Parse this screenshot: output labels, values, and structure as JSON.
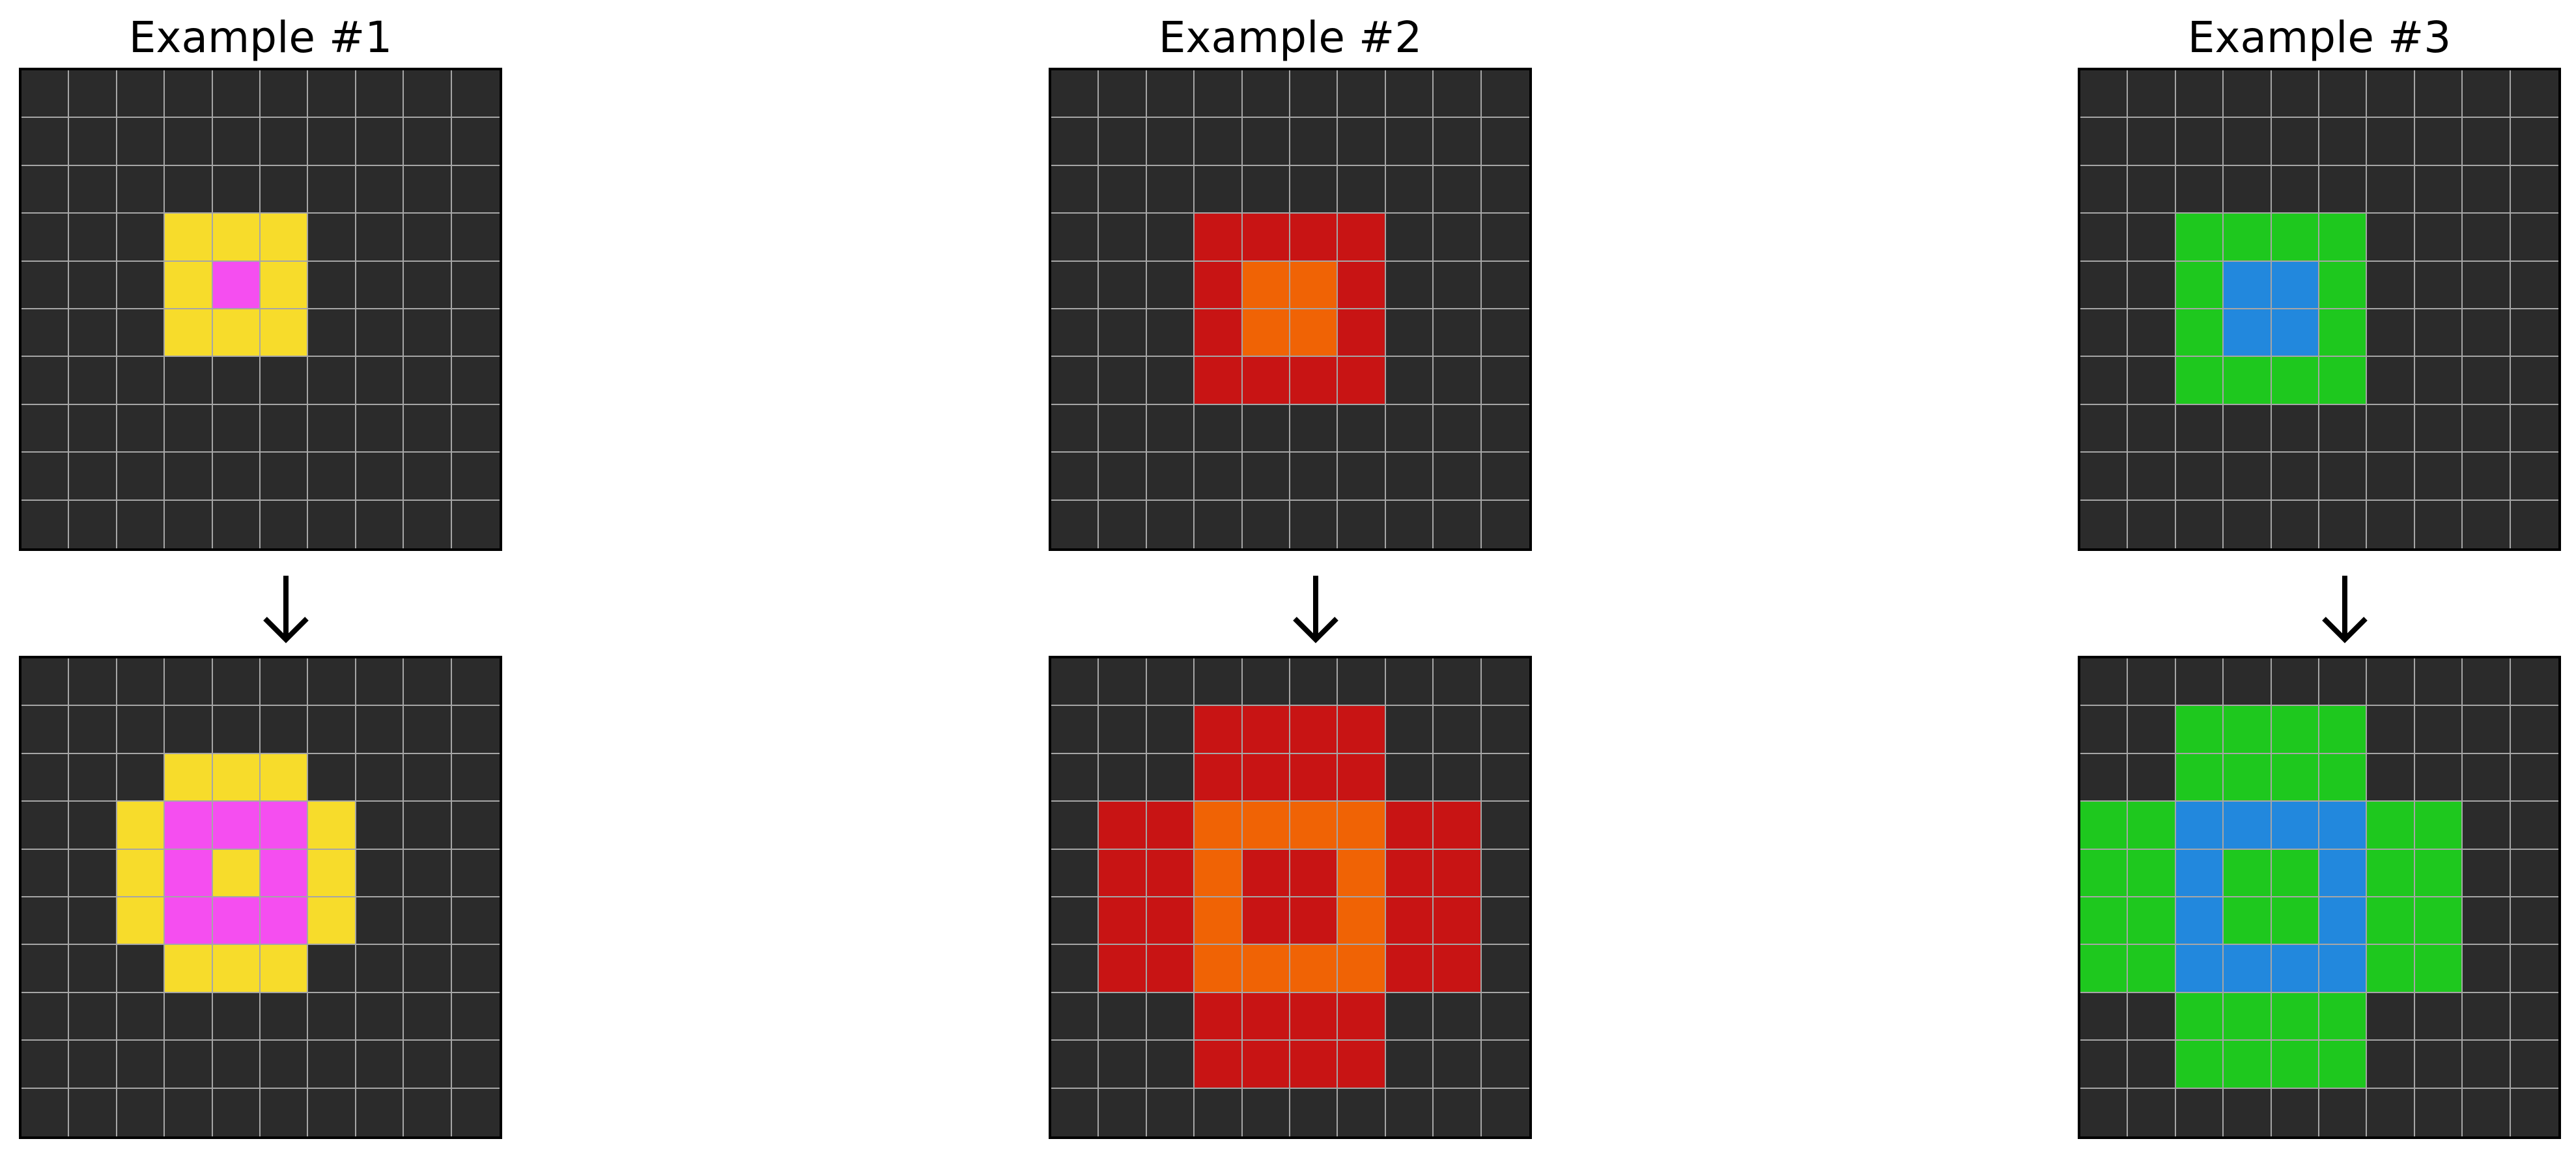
{
  "colors": {
    "0": "#2b2b2b",
    "2": "#c81414",
    "3": "#1ec81e",
    "4": "#f7dc2b",
    "6": "#f54ef0",
    "7": "#f06305",
    "8": "#2288dd"
  },
  "examples": [
    {
      "title": "Example #1",
      "input": [
        [
          0,
          0,
          0,
          0,
          0,
          0,
          0,
          0,
          0,
          0
        ],
        [
          0,
          0,
          0,
          0,
          0,
          0,
          0,
          0,
          0,
          0
        ],
        [
          0,
          0,
          0,
          0,
          0,
          0,
          0,
          0,
          0,
          0
        ],
        [
          0,
          0,
          0,
          4,
          4,
          4,
          0,
          0,
          0,
          0
        ],
        [
          0,
          0,
          0,
          4,
          6,
          4,
          0,
          0,
          0,
          0
        ],
        [
          0,
          0,
          0,
          4,
          4,
          4,
          0,
          0,
          0,
          0
        ],
        [
          0,
          0,
          0,
          0,
          0,
          0,
          0,
          0,
          0,
          0
        ],
        [
          0,
          0,
          0,
          0,
          0,
          0,
          0,
          0,
          0,
          0
        ],
        [
          0,
          0,
          0,
          0,
          0,
          0,
          0,
          0,
          0,
          0
        ],
        [
          0,
          0,
          0,
          0,
          0,
          0,
          0,
          0,
          0,
          0
        ]
      ],
      "output": [
        [
          0,
          0,
          0,
          0,
          0,
          0,
          0,
          0,
          0,
          0
        ],
        [
          0,
          0,
          0,
          0,
          0,
          0,
          0,
          0,
          0,
          0
        ],
        [
          0,
          0,
          0,
          4,
          4,
          4,
          0,
          0,
          0,
          0
        ],
        [
          0,
          0,
          4,
          6,
          6,
          6,
          4,
          0,
          0,
          0
        ],
        [
          0,
          0,
          4,
          6,
          4,
          6,
          4,
          0,
          0,
          0
        ],
        [
          0,
          0,
          4,
          6,
          6,
          6,
          4,
          0,
          0,
          0
        ],
        [
          0,
          0,
          0,
          4,
          4,
          4,
          0,
          0,
          0,
          0
        ],
        [
          0,
          0,
          0,
          0,
          0,
          0,
          0,
          0,
          0,
          0
        ],
        [
          0,
          0,
          0,
          0,
          0,
          0,
          0,
          0,
          0,
          0
        ],
        [
          0,
          0,
          0,
          0,
          0,
          0,
          0,
          0,
          0,
          0
        ]
      ]
    },
    {
      "title": "Example #2",
      "input": [
        [
          0,
          0,
          0,
          0,
          0,
          0,
          0,
          0,
          0,
          0
        ],
        [
          0,
          0,
          0,
          0,
          0,
          0,
          0,
          0,
          0,
          0
        ],
        [
          0,
          0,
          0,
          0,
          0,
          0,
          0,
          0,
          0,
          0
        ],
        [
          0,
          0,
          0,
          2,
          2,
          2,
          2,
          0,
          0,
          0
        ],
        [
          0,
          0,
          0,
          2,
          7,
          7,
          2,
          0,
          0,
          0
        ],
        [
          0,
          0,
          0,
          2,
          7,
          7,
          2,
          0,
          0,
          0
        ],
        [
          0,
          0,
          0,
          2,
          2,
          2,
          2,
          0,
          0,
          0
        ],
        [
          0,
          0,
          0,
          0,
          0,
          0,
          0,
          0,
          0,
          0
        ],
        [
          0,
          0,
          0,
          0,
          0,
          0,
          0,
          0,
          0,
          0
        ],
        [
          0,
          0,
          0,
          0,
          0,
          0,
          0,
          0,
          0,
          0
        ]
      ],
      "output": [
        [
          0,
          0,
          0,
          0,
          0,
          0,
          0,
          0,
          0,
          0
        ],
        [
          0,
          0,
          0,
          2,
          2,
          2,
          2,
          0,
          0,
          0
        ],
        [
          0,
          0,
          0,
          2,
          2,
          2,
          2,
          0,
          0,
          0
        ],
        [
          0,
          2,
          2,
          7,
          7,
          7,
          7,
          2,
          2,
          0
        ],
        [
          0,
          2,
          2,
          7,
          2,
          2,
          7,
          2,
          2,
          0
        ],
        [
          0,
          2,
          2,
          7,
          2,
          2,
          7,
          2,
          2,
          0
        ],
        [
          0,
          2,
          2,
          7,
          7,
          7,
          7,
          2,
          2,
          0
        ],
        [
          0,
          0,
          0,
          2,
          2,
          2,
          2,
          0,
          0,
          0
        ],
        [
          0,
          0,
          0,
          2,
          2,
          2,
          2,
          0,
          0,
          0
        ],
        [
          0,
          0,
          0,
          0,
          0,
          0,
          0,
          0,
          0,
          0
        ]
      ]
    },
    {
      "title": "Example #3",
      "input": [
        [
          0,
          0,
          0,
          0,
          0,
          0,
          0,
          0,
          0,
          0
        ],
        [
          0,
          0,
          0,
          0,
          0,
          0,
          0,
          0,
          0,
          0
        ],
        [
          0,
          0,
          0,
          0,
          0,
          0,
          0,
          0,
          0,
          0
        ],
        [
          0,
          0,
          3,
          3,
          3,
          3,
          0,
          0,
          0,
          0
        ],
        [
          0,
          0,
          3,
          8,
          8,
          3,
          0,
          0,
          0,
          0
        ],
        [
          0,
          0,
          3,
          8,
          8,
          3,
          0,
          0,
          0,
          0
        ],
        [
          0,
          0,
          3,
          3,
          3,
          3,
          0,
          0,
          0,
          0
        ],
        [
          0,
          0,
          0,
          0,
          0,
          0,
          0,
          0,
          0,
          0
        ],
        [
          0,
          0,
          0,
          0,
          0,
          0,
          0,
          0,
          0,
          0
        ],
        [
          0,
          0,
          0,
          0,
          0,
          0,
          0,
          0,
          0,
          0
        ]
      ],
      "output": [
        [
          0,
          0,
          0,
          0,
          0,
          0,
          0,
          0,
          0,
          0
        ],
        [
          0,
          0,
          3,
          3,
          3,
          3,
          0,
          0,
          0,
          0
        ],
        [
          0,
          0,
          3,
          3,
          3,
          3,
          0,
          0,
          0,
          0
        ],
        [
          3,
          3,
          8,
          8,
          8,
          8,
          3,
          3,
          0,
          0
        ],
        [
          3,
          3,
          8,
          3,
          3,
          8,
          3,
          3,
          0,
          0
        ],
        [
          3,
          3,
          8,
          3,
          3,
          8,
          3,
          3,
          0,
          0
        ],
        [
          3,
          3,
          8,
          8,
          8,
          8,
          3,
          3,
          0,
          0
        ],
        [
          0,
          0,
          3,
          3,
          3,
          3,
          0,
          0,
          0,
          0
        ],
        [
          0,
          0,
          3,
          3,
          3,
          3,
          0,
          0,
          0,
          0
        ],
        [
          0,
          0,
          0,
          0,
          0,
          0,
          0,
          0,
          0,
          0
        ]
      ]
    }
  ]
}
